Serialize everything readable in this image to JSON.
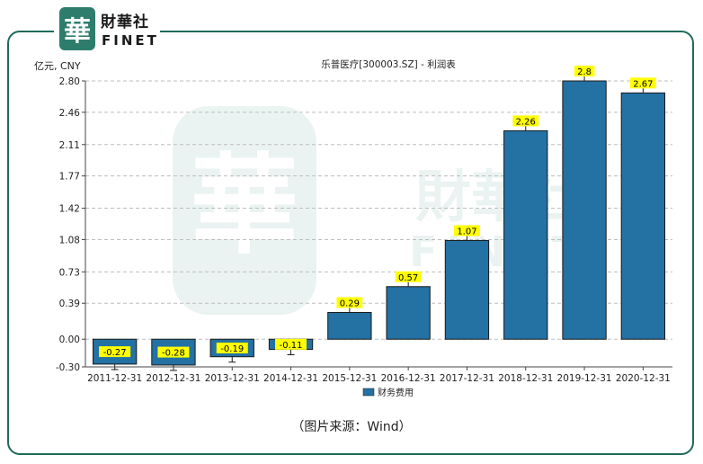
{
  "brand": {
    "name_cn": "財華社",
    "name_en": "FINET",
    "badge_char": "華"
  },
  "colors": {
    "frame": "#1f6b5b",
    "bar": "#2471a3",
    "bar_stroke": "#1a1a1a",
    "label_bg": "#ffff00",
    "watermark": "#d9ebe6"
  },
  "chart_data": {
    "type": "bar",
    "title": "乐普医疗[300003.SZ] - 利润表",
    "unit_label": "亿元, CNY",
    "categories": [
      "2011-12-31",
      "2012-12-31",
      "2013-12-31",
      "2014-12-31",
      "2015-12-31",
      "2016-12-31",
      "2017-12-31",
      "2018-12-31",
      "2019-12-31",
      "2020-12-31"
    ],
    "series": [
      {
        "name": "财务费用",
        "values": [
          -0.27,
          -0.28,
          -0.19,
          -0.11,
          0.29,
          0.57,
          1.07,
          2.26,
          2.8,
          2.67
        ]
      }
    ],
    "y_ticks": [
      "2.80",
      "2.46",
      "2.11",
      "1.77",
      "1.42",
      "1.08",
      "0.73",
      "0.39",
      "0.00",
      "-0.30"
    ],
    "ylim": [
      -0.3,
      2.8
    ],
    "grid": true,
    "legend_position": "bottom"
  },
  "source_note": "（图片来源：Wind）"
}
